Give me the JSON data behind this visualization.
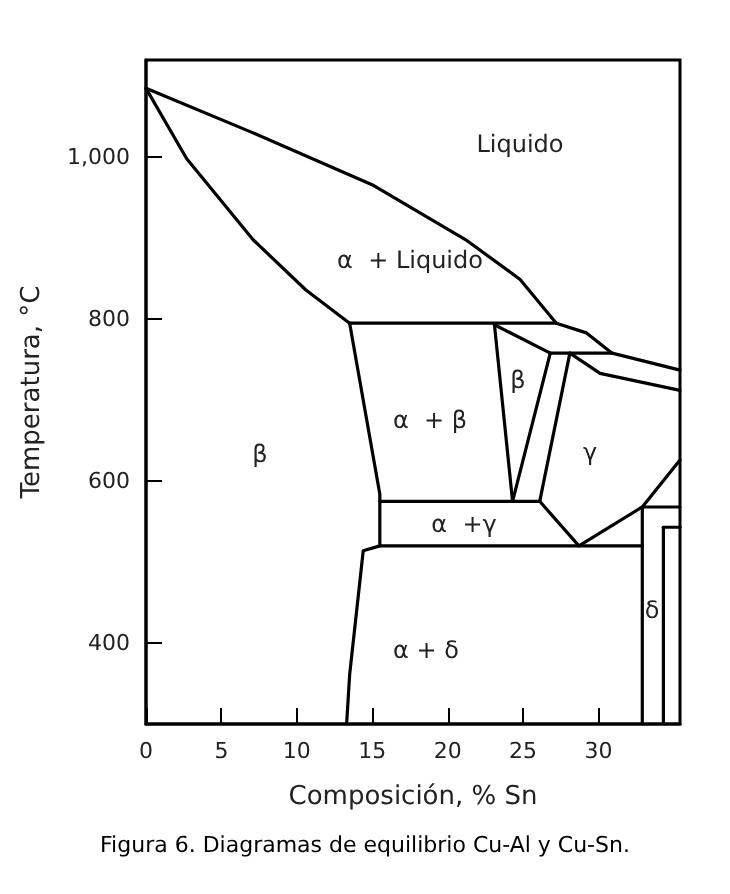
{
  "chart_data": {
    "type": "line",
    "xlabel": "Composición, % Sn",
    "ylabel": "Temperatura, °C",
    "xlim": [
      0,
      35.4
    ],
    "xticks": [
      0,
      5,
      10,
      15,
      20,
      25,
      30
    ],
    "ylim": [
      300,
      1120
    ],
    "yticks": [
      400,
      600,
      800,
      {
        "value": 1000,
        "label": "1,000"
      }
    ],
    "grid": false,
    "marker": "none",
    "line_style": "solid",
    "series": [
      {
        "color": "#000000",
        "x": [
          0,
          7.1,
          15.1,
          21.2,
          24.8,
          27.2
        ],
        "values": [
          1085,
          1030,
          965,
          898,
          849,
          795
        ]
      },
      {
        "color": "#000000",
        "x": [
          0,
          2.7,
          7.1,
          10.6,
          13.5
        ],
        "values": [
          1085,
          998,
          898,
          836,
          795
        ]
      },
      {
        "color": "#000000",
        "x": [
          13.5,
          27.2,
          29.2,
          30.9
        ],
        "values": [
          795,
          795,
          783,
          758
        ]
      },
      {
        "color": "#000000",
        "x": [
          13.5,
          15.5,
          15.5,
          14.4,
          13.5,
          13.3
        ],
        "values": [
          795,
          584,
          520,
          514,
          361,
          300
        ]
      },
      {
        "color": "#000000",
        "x": [
          23.1,
          24.3
        ],
        "values": [
          793,
          575
        ]
      },
      {
        "color": "#000000",
        "x": [
          23.1,
          26.8,
          30.9,
          35.4
        ],
        "values": [
          793,
          758,
          758,
          737
        ]
      },
      {
        "color": "#000000",
        "x": [
          26.8,
          24.3
        ],
        "values": [
          758,
          575
        ]
      },
      {
        "color": "#000000",
        "x": [
          28.1,
          26.1
        ],
        "values": [
          758,
          575
        ]
      },
      {
        "color": "#000000",
        "x": [
          28.1,
          30.1,
          35.4
        ],
        "values": [
          758,
          733,
          712
        ]
      },
      {
        "color": "#000000",
        "x": [
          15.5,
          26.1
        ],
        "values": [
          575,
          575
        ]
      },
      {
        "color": "#000000",
        "x": [
          15.5,
          32.9
        ],
        "values": [
          520,
          520
        ]
      },
      {
        "color": "#000000",
        "x": [
          26.1,
          28.7,
          32.9,
          35.4
        ],
        "values": [
          575,
          520,
          568,
          626
        ]
      },
      {
        "color": "#000000",
        "x": [
          32.9,
          35.4
        ],
        "values": [
          568,
          568
        ]
      },
      {
        "color": "#000000",
        "x": [
          34.3,
          35.4
        ],
        "values": [
          543,
          543
        ]
      },
      {
        "color": "#000000",
        "x": [
          32.9,
          32.9
        ],
        "values": [
          568,
          300
        ]
      },
      {
        "color": "#000000",
        "x": [
          34.3,
          34.3
        ],
        "values": [
          543,
          300
        ]
      }
    ],
    "annotations": [
      "Liquido",
      "α  + Liquido",
      "α  + β",
      "β",
      "β",
      "γ",
      "α  +γ",
      "α + δ",
      "δ",
      "Figura 6. Diagramas de equilibrio Cu-Al y Cu-Sn."
    ]
  }
}
